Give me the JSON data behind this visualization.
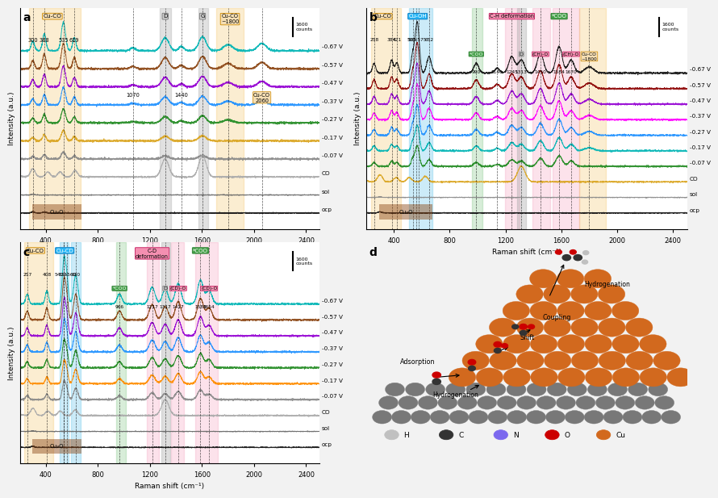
{
  "fig_bg": "#f2f2f2",
  "panel_bg": "#ffffff",
  "raman_xlim": [
    200,
    2500
  ],
  "raman_xticks": [
    400,
    800,
    1200,
    1600,
    2000,
    2400
  ],
  "xlabel": "Raman shift (cm⁻¹)",
  "ylabel": "Intensity (a.u.)",
  "panel_a": {
    "voltages": [
      "-0.67 V",
      "-0.57 V",
      "-0.47 V",
      "-0.37 V",
      "-0.27 V",
      "-0.17 V",
      "-0.07 V",
      "CO",
      "sol",
      "ocp"
    ],
    "line_colors": [
      "#00b4b4",
      "#8b4513",
      "#9400d3",
      "#1e90ff",
      "#228b22",
      "#daa520",
      "#888888",
      "#aaaaaa",
      "#666666",
      "#111111"
    ]
  },
  "panel_b": {
    "voltages": [
      "-0.67 V",
      "-0.57 V",
      "-0.47 V",
      "-0.37 V",
      "-0.27 V",
      "-0.17 V",
      "-0.07 V",
      "CO",
      "sol",
      "ocp"
    ],
    "line_colors": [
      "#111111",
      "#8b0000",
      "#9400d3",
      "#ff00ff",
      "#1e90ff",
      "#00b4b4",
      "#228b22",
      "#daa520",
      "#888888",
      "#111111"
    ]
  },
  "panel_c": {
    "voltages": [
      "-0.67 V",
      "-0.57 V",
      "-0.47 V",
      "-0.37 V",
      "-0.27 V",
      "-0.17 V",
      "-0.07 V",
      "CO",
      "sol",
      "ocp"
    ],
    "line_colors": [
      "#00b4b4",
      "#8b4513",
      "#9400d3",
      "#1e90ff",
      "#228b22",
      "#ff8c00",
      "#888888",
      "#aaaaaa",
      "#666666",
      "#111111"
    ]
  },
  "legend_labels": [
    "H",
    "C",
    "N",
    "O",
    "Cu"
  ],
  "legend_colors": [
    "#c0c0c0",
    "#333333",
    "#7b68ee",
    "#cc0000",
    "#d2691e"
  ]
}
